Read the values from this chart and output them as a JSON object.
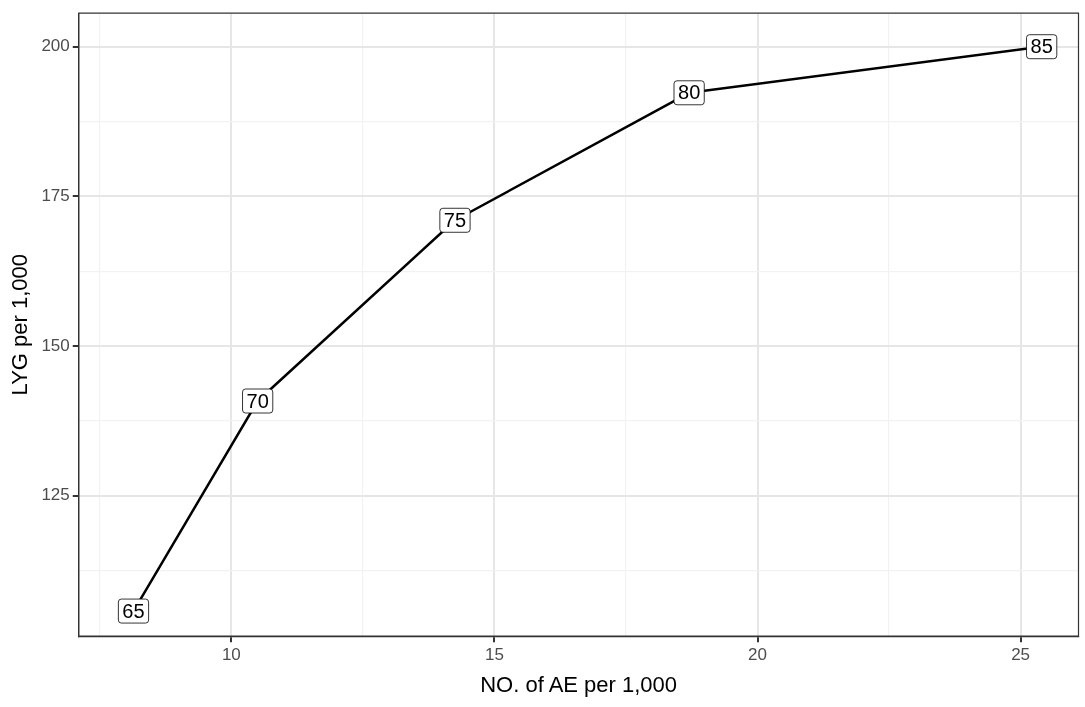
{
  "chart_data": {
    "type": "line",
    "xlabel": "NO. of AE per 1,000",
    "ylabel": "LYG per 1,000",
    "x": [
      8.14,
      10.5,
      14.25,
      18.7,
      25.4
    ],
    "series": [
      {
        "color": "#000000",
        "values": [
          105.7,
          140.8,
          171,
          192.3,
          200
        ]
      }
    ],
    "xlim": [
      7.1,
      26.1
    ],
    "xticks": [
      {
        "value": 7.5,
        "label": null
      },
      10,
      {
        "value": 12.5,
        "label": null
      },
      15,
      {
        "value": 17.5,
        "label": null
      },
      20,
      {
        "value": 22.5,
        "label": null
      },
      25
    ],
    "ylim": [
      101.5,
      205.6
    ],
    "yticks": [
      {
        "value": 112.5,
        "label": null
      },
      125,
      {
        "value": 137.5,
        "label": null
      },
      150,
      {
        "value": 162.5,
        "label": null
      },
      175,
      {
        "value": 187.5,
        "label": null
      },
      200
    ],
    "grid": true,
    "legend": false,
    "marker": "square",
    "line_style": "solid",
    "annotations": [
      {
        "text": "65",
        "x": 8.14,
        "y": 105.7
      },
      {
        "text": "70",
        "x": 10.5,
        "y": 140.8
      },
      {
        "text": "75",
        "x": 14.25,
        "y": 171
      },
      {
        "text": "80",
        "x": 18.7,
        "y": 192.3
      },
      {
        "text": "85",
        "x": 25.4,
        "y": 200
      }
    ]
  }
}
